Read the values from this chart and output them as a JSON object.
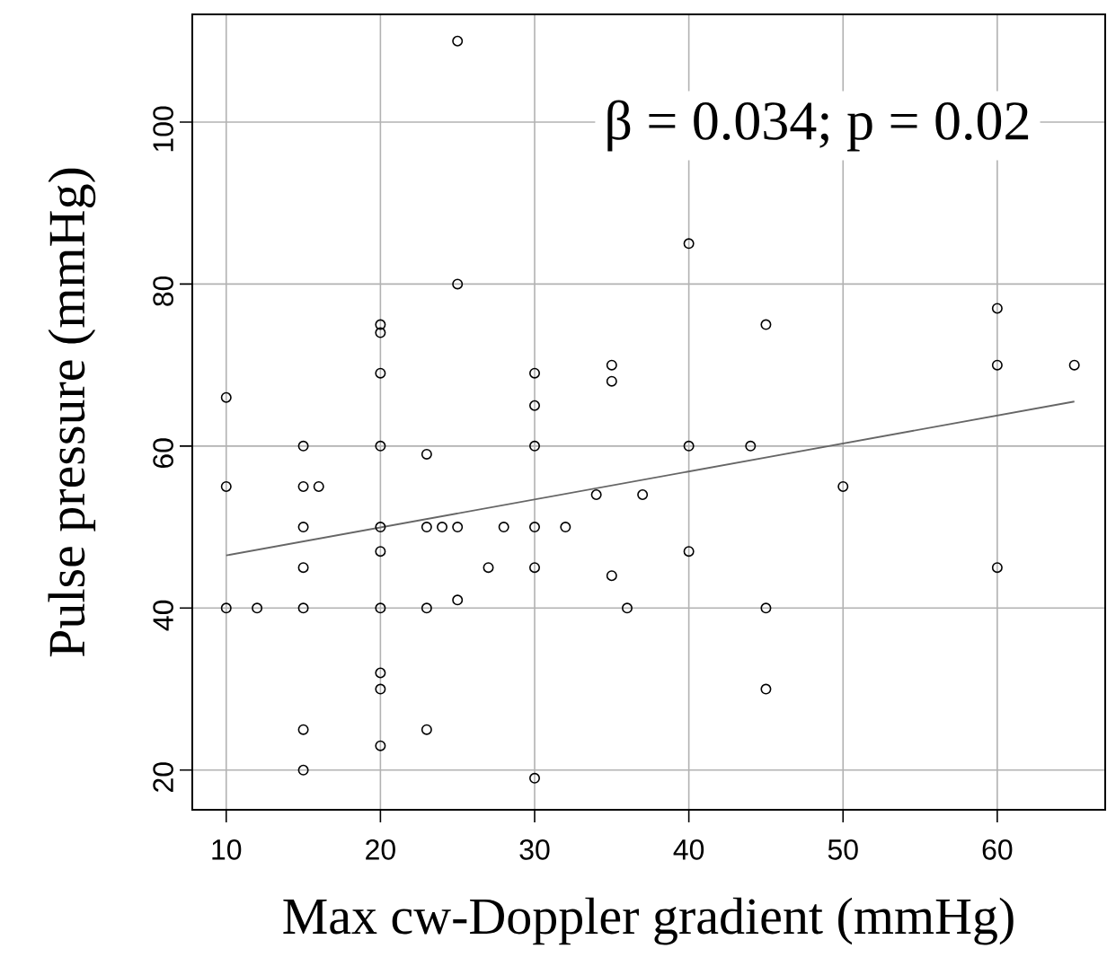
{
  "chart_data": {
    "type": "scatter",
    "xlabel": "Max cw-Doppler gradient (mmHg)",
    "ylabel": "Pulse pressure (mmHg)",
    "annotations": [
      "β = 0.034;  p = 0.02"
    ],
    "xlim": [
      7.8,
      67
    ],
    "ylim": [
      15.1,
      113.3
    ],
    "xticks": [
      10,
      20,
      30,
      40,
      50,
      60
    ],
    "yticks": [
      20,
      40,
      60,
      80,
      100
    ],
    "grid": true,
    "series": [
      {
        "color": "#000000",
        "marker": "circle",
        "x": [
          10,
          10,
          10,
          12,
          15,
          15,
          15,
          15,
          15,
          15,
          15,
          16,
          20,
          20,
          20,
          20,
          20,
          20,
          20,
          20,
          20,
          20,
          23,
          23,
          23,
          23,
          24,
          25,
          25,
          25,
          25,
          27,
          28,
          30,
          30,
          30,
          30,
          30,
          30,
          32,
          34,
          35,
          35,
          35,
          36,
          37,
          40,
          40,
          40,
          44,
          45,
          45,
          45,
          50,
          60,
          60,
          60,
          65
        ],
        "values": [
          66,
          55,
          40,
          40,
          60,
          55,
          50,
          45,
          40,
          25,
          20,
          55,
          75,
          74,
          69,
          60,
          50,
          47,
          40,
          32,
          30,
          23,
          59,
          50,
          40,
          25,
          50,
          110,
          80,
          50,
          41,
          45,
          50,
          69,
          65,
          60,
          50,
          45,
          19,
          50,
          54,
          70,
          68,
          44,
          40,
          54,
          85,
          60,
          47,
          60,
          75,
          40,
          30,
          55,
          77,
          70,
          45,
          70
        ]
      },
      {
        "type": "line",
        "marker": "none",
        "color": "#666666",
        "x": [
          10,
          65
        ],
        "values": [
          46.5,
          65.5
        ]
      }
    ]
  }
}
